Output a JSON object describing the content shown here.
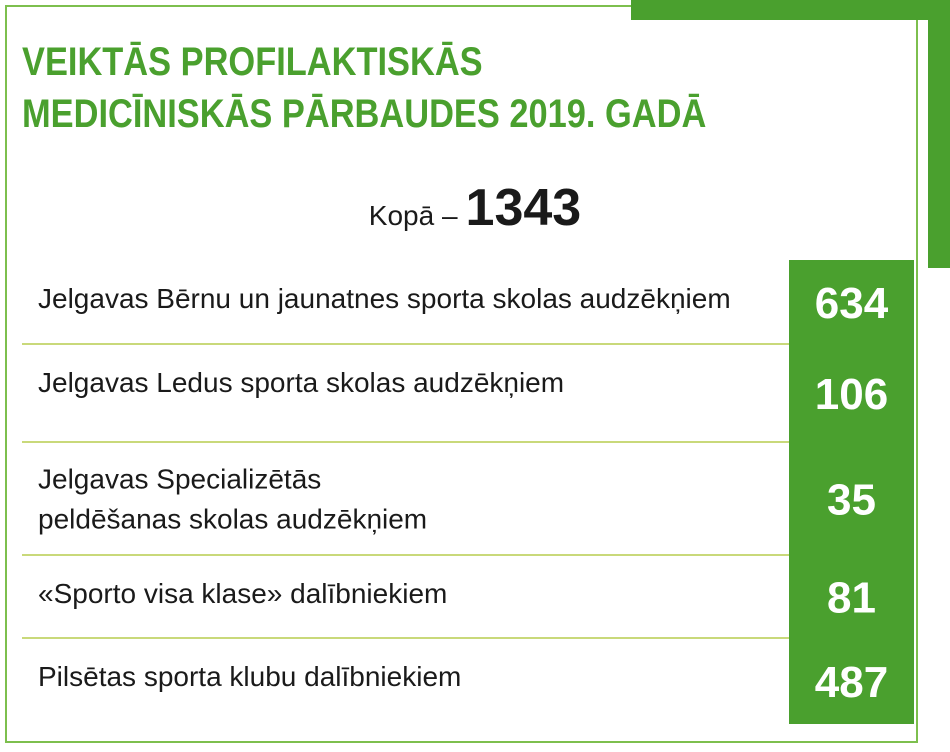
{
  "title_lines": [
    "VEIKTĀS PROFILAKTISKĀS",
    "MEDICĪNISKĀS PĀRBAUDES 2019. GADĀ"
  ],
  "total": {
    "label": "Kopā –",
    "value": "1343"
  },
  "colors": {
    "accent": "#4aa02e",
    "frame": "#7dbf4e",
    "divider": "#c9d97a",
    "text": "#1a1a1a",
    "value_text": "#ffffff"
  },
  "chart_data": {
    "type": "table",
    "title": "VEIKTĀS PROFILAKTISKĀS MEDICĪNISKĀS PĀRBAUDES 2019. GADĀ",
    "total": 1343,
    "rows": [
      {
        "label": [
          "Jelgavas Bērnu un jaunatnes sporta skolas audzēkņiem"
        ],
        "value": 634
      },
      {
        "label": [
          "Jelgavas Ledus sporta skolas audzēkņiem"
        ],
        "value": 106
      },
      {
        "label": [
          "Jelgavas Specializētās",
          "peldēšanas skolas audzēkņiem"
        ],
        "value": 35
      },
      {
        "label": [
          "«Sporto visa klase» dalībniekiem"
        ],
        "value": 81
      },
      {
        "label": [
          "Pilsētas sporta klubu dalībniekiem"
        ],
        "value": 487
      }
    ]
  }
}
